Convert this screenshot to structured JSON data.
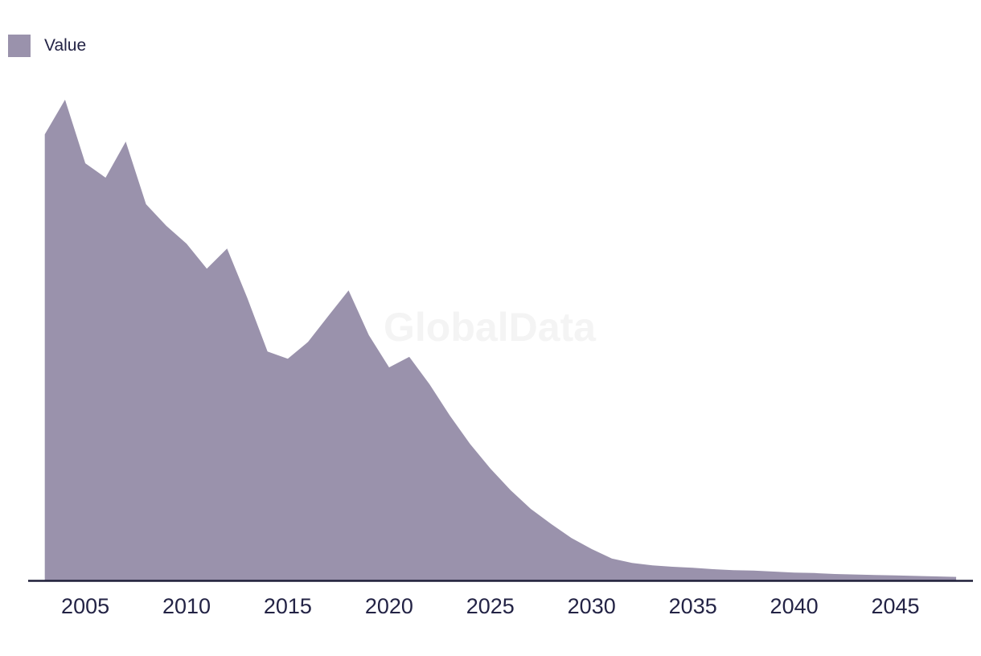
{
  "legend": {
    "items": [
      {
        "label": "Value",
        "swatch_color": "#9a92ac"
      }
    ]
  },
  "watermark": {
    "text": "GlobalData",
    "color": "#f4f4f4"
  },
  "colors": {
    "area_fill": "#9a92ac",
    "axis_line": "#1e1e38",
    "tick_text": "#232345"
  },
  "chart_data": {
    "type": "area",
    "title": "",
    "xlabel": "",
    "ylabel": "",
    "x": [
      2003,
      2004,
      2005,
      2006,
      2007,
      2008,
      2009,
      2010,
      2011,
      2012,
      2013,
      2014,
      2015,
      2016,
      2017,
      2018,
      2019,
      2020,
      2021,
      2022,
      2023,
      2024,
      2025,
      2026,
      2027,
      2028,
      2029,
      2030,
      2031,
      2032,
      2033,
      2034,
      2035,
      2036,
      2037,
      2038,
      2039,
      2040,
      2041,
      2042,
      2043,
      2044,
      2045,
      2046,
      2047,
      2048
    ],
    "series": [
      {
        "name": "Value",
        "color": "#9a92ac",
        "values": [
          92.8,
          100,
          86.8,
          83.8,
          91.3,
          78.3,
          73.8,
          70.1,
          64.9,
          69.1,
          58.8,
          47.7,
          46.2,
          49.7,
          55.1,
          60.4,
          51.1,
          44.4,
          46.6,
          40.9,
          34.4,
          28.5,
          23.4,
          18.9,
          15.0,
          11.9,
          9.0,
          6.7,
          4.7,
          3.8,
          3.3,
          3.0,
          2.8,
          2.5,
          2.3,
          2.2,
          2.0,
          1.8,
          1.7,
          1.5,
          1.4,
          1.3,
          1.2,
          1.1,
          1.0,
          0.9
        ]
      }
    ],
    "x_tick_labels": [
      "2005",
      "2010",
      "2015",
      "2020",
      "2025",
      "2030",
      "2035",
      "2040",
      "2045"
    ],
    "x_tick_years": [
      2005,
      2010,
      2015,
      2020,
      2025,
      2030,
      2035,
      2040,
      2045
    ],
    "y_axis_visible": false,
    "grid": false,
    "ylim": [
      0,
      115
    ],
    "legend_position": "top-left",
    "values_unit": "relative (y-axis unlabeled, peak 2004 = 100)"
  }
}
